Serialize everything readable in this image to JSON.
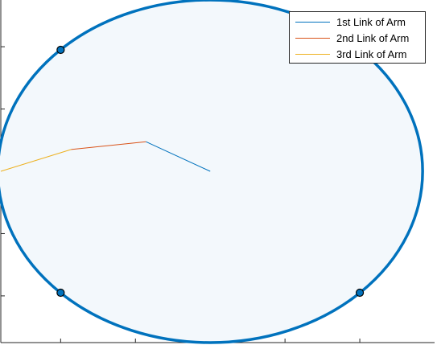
{
  "chart_data": {
    "type": "line",
    "xlim": [
      -1.4,
      1.5
    ],
    "ylim": [
      -1.1,
      1.1
    ],
    "x_ticks": [
      -1,
      -0.5,
      0,
      0.5,
      1
    ],
    "y_ticks": [
      -0.8,
      -0.4,
      0,
      0.4,
      0.8
    ],
    "tick_labels_visible": false,
    "grid": false,
    "legend_position": "top-right",
    "workspace_boundary": {
      "shape": "ellipse",
      "center": [
        0,
        0
      ],
      "radius_x": 1.42,
      "radius_y": 1.1,
      "edge_color": "#0072BD",
      "fill_color": "#F3F8FC"
    },
    "markers": [
      {
        "x": -1.0,
        "y": 0.78
      },
      {
        "x": -1.0,
        "y": -0.78
      },
      {
        "x": 1.0,
        "y": -0.78
      }
    ],
    "series": [
      {
        "name": "1st Link of Arm",
        "color": "#0072BD",
        "x": [
          0,
          -0.43
        ],
        "y": [
          0,
          0.19
        ]
      },
      {
        "name": "2nd Link of Arm",
        "color": "#D95319",
        "x": [
          -0.43,
          -0.93
        ],
        "y": [
          0.19,
          0.14
        ]
      },
      {
        "name": "3rd Link of Arm",
        "color": "#EDB120",
        "x": [
          -0.93,
          -1.4
        ],
        "y": [
          0.14,
          0
        ]
      }
    ]
  }
}
